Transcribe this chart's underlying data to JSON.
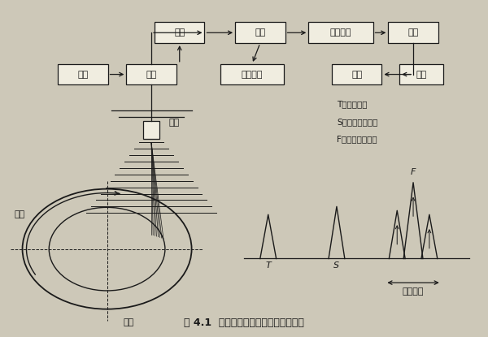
{
  "bg_color": "#cdc8b8",
  "line_color": "#1a1a1a",
  "box_fill": "#f0ede0",
  "legend_text": [
    "T：发射脉冲",
    "S：表面反射脉冲",
    "F：缺陷反射脉冲"
  ],
  "caption": "图 4.1  小直径薄壁管水浸探伤基本形式"
}
